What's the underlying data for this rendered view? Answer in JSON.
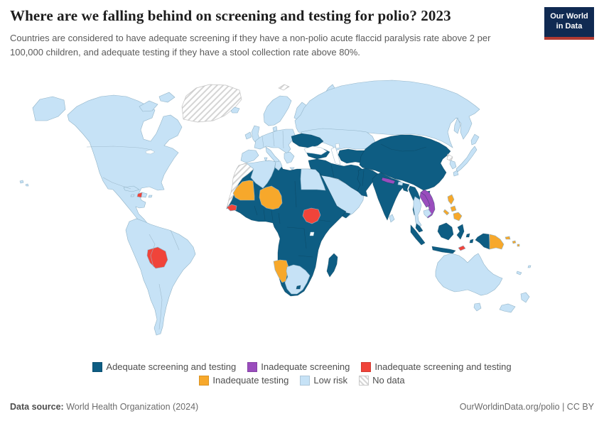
{
  "header": {
    "title": "Where are we falling behind on screening and testing for polio? 2023",
    "subtitle": "Countries are considered to have adequate screening if they have a non-polio acute flaccid paralysis rate above 2 per 100,000 children, and adequate testing if they have a stool collection rate above 80%.",
    "logo_line1": "Our World",
    "logo_line2": "in Data"
  },
  "footer": {
    "source_label": "Data source:",
    "source_value": " World Health Organization (2024)",
    "credit": "OurWorldinData.org/polio | CC BY"
  },
  "chart_data": {
    "type": "choropleth_map",
    "title": "Where are we falling behind on screening and testing for polio?",
    "year": "2023",
    "legend_position": "bottom-center",
    "ocean_color": "#ffffff",
    "categories": [
      {
        "key": "adequate",
        "label": "Adequate screening and testing",
        "color": "#0e5d83"
      },
      {
        "key": "inadequate_screening",
        "label": "Inadequate screening",
        "color": "#9a4dbd"
      },
      {
        "key": "inadequate_both",
        "label": "Inadequate screening and testing",
        "color": "#f0443a"
      },
      {
        "key": "inadequate_testing",
        "label": "Inadequate testing",
        "color": "#f7a82b"
      },
      {
        "key": "low_risk",
        "label": "Low risk",
        "color": "#c6e2f6"
      },
      {
        "key": "no_data",
        "label": "No data",
        "color": "hatch"
      }
    ],
    "legend_rows": [
      [
        "adequate",
        "inadequate_screening",
        "inadequate_both"
      ],
      [
        "inadequate_testing",
        "low_risk",
        "no_data"
      ]
    ],
    "regions": {
      "greenland": "no_data",
      "svalbard": "no_data",
      "morocco-western-sahara": "no_data",
      "north-korea": "no_data",
      "alaska": "low_risk",
      "canada-usa-mexico": "low_risk",
      "arctic-islands": "low_risk",
      "iceland": "low_risk",
      "novaya-zemlya": "low_risk",
      "hawaii": "low_risk",
      "cuba": "low_risk",
      "jamaica": "low_risk",
      "haiti": "inadequate_both",
      "dominican-republic": "low_risk",
      "puerto-rico": "low_risk",
      "south-america": "low_risk",
      "bolivia": "inadequate_both",
      "ireland": "low_risk",
      "united-kingdom": "low_risk",
      "scandinavia": "low_risk",
      "finland": "low_risk",
      "denmark": "low_risk",
      "europe": "low_risk",
      "iberia": "low_risk",
      "italy": "low_risk",
      "balkans-greece": "low_risk",
      "russia": "low_risk",
      "sakhalin": "low_risk",
      "kazakhstan": "low_risk",
      "ukraine": "adequate",
      "turkey": "adequate",
      "middle-east": "adequate",
      "central-asia": "adequate",
      "arabian-peninsula": "low_risk",
      "yemen": "adequate",
      "africa": "adequate",
      "algeria": "low_risk",
      "tunisia": "low_risk",
      "egypt": "low_risk",
      "mauritania": "inadequate_testing",
      "niger": "inadequate_testing",
      "gambia-guinea-bissau": "inadequate_both",
      "south-sudan": "inadequate_both",
      "namibia": "inadequate_testing",
      "botswana-south-africa": "low_risk",
      "lesotho": "adequate",
      "madagascar": "adequate",
      "afghanistan-pakistan": "adequate",
      "india": "adequate",
      "nepal": "inadequate_screening",
      "bhutan": "low_risk",
      "bangladesh": "adequate",
      "sri-lanka": "low_risk",
      "china-mongolia": "adequate",
      "hainan": "adequate",
      "korea-south": "low_risk",
      "japan": "low_risk",
      "myanmar": "adequate",
      "thailand": "low_risk",
      "laos": "inadequate_screening",
      "vietnam": "inadequate_screening",
      "cambodia": "low_risk",
      "malaysia": "adequate",
      "sumatra": "adequate",
      "java": "adequate",
      "borneo": "adequate",
      "sulawesi": "adequate",
      "moluccas": "adequate",
      "timor-leste": "inadequate_both",
      "philippines": "inadequate_testing",
      "new-guinea-west": "adequate",
      "papua-new-guinea": "inadequate_testing",
      "solomon-islands": "inadequate_testing",
      "new-caledonia": "low_risk",
      "fiji": "low_risk",
      "australia": "low_risk",
      "tasmania": "low_risk",
      "new-zealand": "low_risk"
    }
  }
}
